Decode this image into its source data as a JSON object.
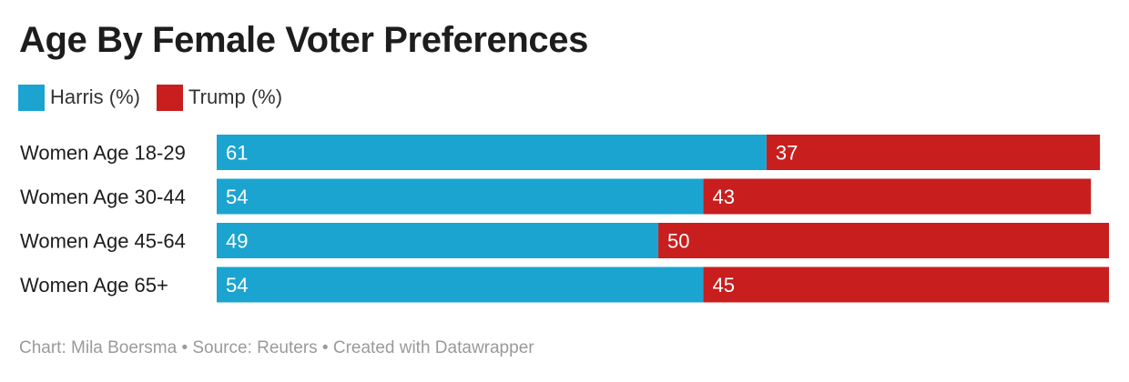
{
  "title": "Age By Female Voter Preferences",
  "legend": [
    {
      "label": "Harris (%)",
      "color": "#1ba4d0"
    },
    {
      "label": "Trump (%)",
      "color": "#c91e1e"
    }
  ],
  "footer": "Chart: Mila Boersma • Source: Reuters • Created with Datawrapper",
  "chart_data": {
    "type": "bar",
    "orientation": "horizontal",
    "stacked": true,
    "categories": [
      "Women Age 18-29",
      "Women Age 30-44",
      "Women Age 45-64",
      "Women Age 65+"
    ],
    "series": [
      {
        "name": "Harris (%)",
        "color": "#1ba4d0",
        "values": [
          61,
          54,
          49,
          54
        ]
      },
      {
        "name": "Trump (%)",
        "color": "#c91e1e",
        "values": [
          37,
          43,
          50,
          45
        ]
      }
    ],
    "title": "Age By Female Voter Preferences",
    "xlabel": "",
    "ylabel": "",
    "xlim": [
      0,
      99
    ],
    "grid": false,
    "legend_position": "top-left",
    "data_labels": true
  }
}
